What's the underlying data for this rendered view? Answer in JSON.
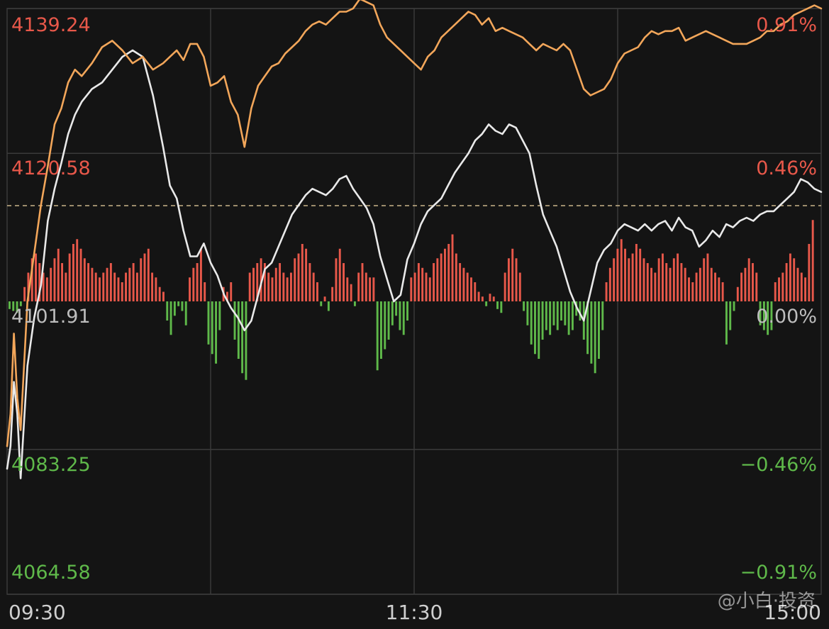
{
  "chart_data": {
    "type": "line",
    "reference_price": "4101.91",
    "y_left_ticks": [
      {
        "label": "4139.24",
        "value": 4139.24,
        "tone": "up"
      },
      {
        "label": "4120.58",
        "value": 4120.58,
        "tone": "up"
      },
      {
        "label": "4101.91",
        "value": 4101.91,
        "tone": "flat"
      },
      {
        "label": "4083.25",
        "value": 4083.25,
        "tone": "down"
      },
      {
        "label": "4064.58",
        "value": 4064.58,
        "tone": "down"
      }
    ],
    "y_right_ticks": [
      {
        "label": "0.91%",
        "value": 0.91,
        "tone": "up"
      },
      {
        "label": "0.46%",
        "value": 0.46,
        "tone": "up"
      },
      {
        "label": "0.00%",
        "value": 0.0,
        "tone": "flat"
      },
      {
        "label": "−0.46%",
        "value": -0.46,
        "tone": "down"
      },
      {
        "label": "−0.91%",
        "value": -0.91,
        "tone": "down"
      }
    ],
    "x_ticks": [
      "09:30",
      "11:30",
      "15:00"
    ],
    "x_range_minutes": [
      0,
      240
    ],
    "ylim_pct": [
      -0.91,
      0.91
    ],
    "grid": true,
    "colors": {
      "up": "#e8584a",
      "down": "#5fb94a",
      "flat": "#bdbdbd",
      "series_white": "#e9e9e9",
      "series_orange": "#f2a65a",
      "grid": "#3a3a3a",
      "ref_line": "#c9b48a"
    },
    "series": [
      {
        "color_key": "series_white",
        "points": [
          [
            0,
            -0.52
          ],
          [
            1,
            -0.45
          ],
          [
            2,
            -0.25
          ],
          [
            3,
            -0.35
          ],
          [
            4,
            -0.55
          ],
          [
            6,
            -0.2
          ],
          [
            8,
            -0.05
          ],
          [
            10,
            0.05
          ],
          [
            12,
            0.25
          ],
          [
            14,
            0.35
          ],
          [
            16,
            0.43
          ],
          [
            18,
            0.52
          ],
          [
            20,
            0.58
          ],
          [
            22,
            0.62
          ],
          [
            25,
            0.66
          ],
          [
            28,
            0.68
          ],
          [
            31,
            0.72
          ],
          [
            34,
            0.76
          ],
          [
            37,
            0.78
          ],
          [
            40,
            0.76
          ],
          [
            43,
            0.64
          ],
          [
            46,
            0.48
          ],
          [
            48,
            0.36
          ],
          [
            50,
            0.32
          ],
          [
            52,
            0.22
          ],
          [
            54,
            0.14
          ],
          [
            56,
            0.14
          ],
          [
            58,
            0.18
          ],
          [
            60,
            0.12
          ],
          [
            62,
            0.08
          ],
          [
            64,
            0.02
          ],
          [
            66,
            -0.02
          ],
          [
            68,
            -0.05
          ],
          [
            70,
            -0.09
          ],
          [
            72,
            -0.06
          ],
          [
            74,
            0.02
          ],
          [
            76,
            0.1
          ],
          [
            78,
            0.12
          ],
          [
            80,
            0.17
          ],
          [
            82,
            0.22
          ],
          [
            84,
            0.27
          ],
          [
            86,
            0.3
          ],
          [
            88,
            0.33
          ],
          [
            90,
            0.35
          ],
          [
            92,
            0.34
          ],
          [
            94,
            0.33
          ],
          [
            96,
            0.35
          ],
          [
            98,
            0.38
          ],
          [
            100,
            0.39
          ],
          [
            102,
            0.35
          ],
          [
            104,
            0.32
          ],
          [
            106,
            0.29
          ],
          [
            108,
            0.24
          ],
          [
            110,
            0.14
          ],
          [
            112,
            0.07
          ],
          [
            114,
            0.0
          ],
          [
            116,
            0.02
          ],
          [
            118,
            0.13
          ],
          [
            120,
            0.18
          ],
          [
            122,
            0.24
          ],
          [
            124,
            0.28
          ],
          [
            126,
            0.3
          ],
          [
            128,
            0.32
          ],
          [
            130,
            0.36
          ],
          [
            132,
            0.4
          ],
          [
            134,
            0.43
          ],
          [
            136,
            0.46
          ],
          [
            138,
            0.5
          ],
          [
            140,
            0.52
          ],
          [
            142,
            0.55
          ],
          [
            144,
            0.53
          ],
          [
            146,
            0.52
          ],
          [
            148,
            0.55
          ],
          [
            150,
            0.54
          ],
          [
            152,
            0.5
          ],
          [
            154,
            0.46
          ],
          [
            156,
            0.36
          ],
          [
            158,
            0.27
          ],
          [
            160,
            0.22
          ],
          [
            162,
            0.17
          ],
          [
            164,
            0.1
          ],
          [
            166,
            0.03
          ],
          [
            168,
            -0.02
          ],
          [
            170,
            -0.06
          ],
          [
            172,
            0.03
          ],
          [
            174,
            0.12
          ],
          [
            176,
            0.16
          ],
          [
            178,
            0.18
          ],
          [
            180,
            0.22
          ],
          [
            182,
            0.24
          ],
          [
            184,
            0.23
          ],
          [
            186,
            0.22
          ],
          [
            188,
            0.24
          ],
          [
            190,
            0.22
          ],
          [
            192,
            0.24
          ],
          [
            194,
            0.25
          ],
          [
            196,
            0.22
          ],
          [
            198,
            0.26
          ],
          [
            200,
            0.23
          ],
          [
            202,
            0.22
          ],
          [
            204,
            0.17
          ],
          [
            206,
            0.19
          ],
          [
            208,
            0.22
          ],
          [
            210,
            0.2
          ],
          [
            212,
            0.24
          ],
          [
            214,
            0.23
          ],
          [
            216,
            0.25
          ],
          [
            218,
            0.26
          ],
          [
            220,
            0.25
          ],
          [
            222,
            0.27
          ],
          [
            224,
            0.28
          ],
          [
            226,
            0.28
          ],
          [
            228,
            0.3
          ],
          [
            230,
            0.32
          ],
          [
            232,
            0.34
          ],
          [
            234,
            0.38
          ],
          [
            236,
            0.37
          ],
          [
            238,
            0.35
          ],
          [
            240,
            0.34
          ]
        ]
      },
      {
        "color_key": "series_orange",
        "points": [
          [
            0,
            -0.45
          ],
          [
            1,
            -0.35
          ],
          [
            2,
            -0.1
          ],
          [
            3,
            -0.3
          ],
          [
            4,
            -0.4
          ],
          [
            6,
            0.0
          ],
          [
            8,
            0.15
          ],
          [
            10,
            0.3
          ],
          [
            12,
            0.42
          ],
          [
            14,
            0.55
          ],
          [
            16,
            0.6
          ],
          [
            18,
            0.68
          ],
          [
            20,
            0.72
          ],
          [
            22,
            0.7
          ],
          [
            25,
            0.74
          ],
          [
            28,
            0.79
          ],
          [
            31,
            0.81
          ],
          [
            34,
            0.78
          ],
          [
            37,
            0.74
          ],
          [
            40,
            0.76
          ],
          [
            43,
            0.72
          ],
          [
            46,
            0.74
          ],
          [
            48,
            0.76
          ],
          [
            50,
            0.78
          ],
          [
            52,
            0.75
          ],
          [
            54,
            0.8
          ],
          [
            56,
            0.8
          ],
          [
            58,
            0.76
          ],
          [
            60,
            0.67
          ],
          [
            62,
            0.68
          ],
          [
            64,
            0.7
          ],
          [
            66,
            0.62
          ],
          [
            68,
            0.58
          ],
          [
            70,
            0.48
          ],
          [
            72,
            0.6
          ],
          [
            74,
            0.67
          ],
          [
            76,
            0.7
          ],
          [
            78,
            0.73
          ],
          [
            80,
            0.74
          ],
          [
            82,
            0.77
          ],
          [
            84,
            0.79
          ],
          [
            86,
            0.81
          ],
          [
            88,
            0.84
          ],
          [
            90,
            0.86
          ],
          [
            92,
            0.87
          ],
          [
            94,
            0.86
          ],
          [
            96,
            0.88
          ],
          [
            98,
            0.9
          ],
          [
            100,
            0.9
          ],
          [
            102,
            0.91
          ],
          [
            104,
            0.94
          ],
          [
            106,
            0.93
          ],
          [
            108,
            0.92
          ],
          [
            110,
            0.86
          ],
          [
            112,
            0.82
          ],
          [
            114,
            0.8
          ],
          [
            116,
            0.78
          ],
          [
            118,
            0.76
          ],
          [
            120,
            0.74
          ],
          [
            122,
            0.72
          ],
          [
            124,
            0.76
          ],
          [
            126,
            0.78
          ],
          [
            128,
            0.82
          ],
          [
            130,
            0.84
          ],
          [
            132,
            0.86
          ],
          [
            134,
            0.88
          ],
          [
            136,
            0.9
          ],
          [
            138,
            0.89
          ],
          [
            140,
            0.86
          ],
          [
            142,
            0.88
          ],
          [
            144,
            0.84
          ],
          [
            146,
            0.85
          ],
          [
            148,
            0.84
          ],
          [
            150,
            0.83
          ],
          [
            152,
            0.82
          ],
          [
            154,
            0.8
          ],
          [
            156,
            0.78
          ],
          [
            158,
            0.8
          ],
          [
            160,
            0.79
          ],
          [
            162,
            0.78
          ],
          [
            164,
            0.8
          ],
          [
            166,
            0.78
          ],
          [
            168,
            0.72
          ],
          [
            170,
            0.66
          ],
          [
            172,
            0.64
          ],
          [
            174,
            0.65
          ],
          [
            176,
            0.66
          ],
          [
            178,
            0.69
          ],
          [
            180,
            0.74
          ],
          [
            182,
            0.77
          ],
          [
            184,
            0.78
          ],
          [
            186,
            0.79
          ],
          [
            188,
            0.82
          ],
          [
            190,
            0.84
          ],
          [
            192,
            0.83
          ],
          [
            194,
            0.84
          ],
          [
            196,
            0.84
          ],
          [
            198,
            0.85
          ],
          [
            200,
            0.81
          ],
          [
            202,
            0.82
          ],
          [
            204,
            0.83
          ],
          [
            206,
            0.84
          ],
          [
            208,
            0.83
          ],
          [
            210,
            0.82
          ],
          [
            212,
            0.81
          ],
          [
            214,
            0.8
          ],
          [
            216,
            0.8
          ],
          [
            218,
            0.8
          ],
          [
            220,
            0.81
          ],
          [
            222,
            0.82
          ],
          [
            224,
            0.84
          ],
          [
            226,
            0.84
          ],
          [
            228,
            0.86
          ],
          [
            230,
            0.87
          ],
          [
            232,
            0.89
          ],
          [
            234,
            0.9
          ],
          [
            236,
            0.91
          ],
          [
            238,
            0.92
          ],
          [
            240,
            0.91
          ]
        ]
      }
    ],
    "volume_bars": {
      "ylim": [
        -1.0,
        1.0
      ],
      "values": [
        -0.08,
        -0.1,
        -0.12,
        -0.05,
        0.15,
        0.3,
        0.45,
        0.5,
        0.4,
        0.3,
        0.25,
        0.35,
        0.45,
        0.55,
        0.4,
        0.3,
        0.5,
        0.6,
        0.65,
        0.55,
        0.45,
        0.4,
        0.35,
        0.3,
        0.25,
        0.3,
        0.35,
        0.4,
        0.3,
        0.25,
        0.2,
        0.3,
        0.35,
        0.4,
        0.3,
        0.45,
        0.5,
        0.55,
        0.3,
        0.25,
        0.15,
        0.1,
        -0.2,
        -0.35,
        -0.15,
        -0.05,
        -0.1,
        -0.25,
        0.25,
        0.35,
        0.4,
        0.55,
        0.2,
        -0.45,
        -0.55,
        -0.65,
        -0.3,
        0.15,
        0.1,
        0.2,
        -0.4,
        -0.6,
        -0.75,
        -0.82,
        0.3,
        0.35,
        0.4,
        0.45,
        0.4,
        0.3,
        0.25,
        0.35,
        0.4,
        0.3,
        0.25,
        0.3,
        0.45,
        0.5,
        0.6,
        0.55,
        0.4,
        0.3,
        0.2,
        -0.05,
        0.05,
        -0.1,
        0.15,
        0.45,
        0.55,
        0.4,
        0.25,
        0.18,
        -0.05,
        0.3,
        0.4,
        0.3,
        0.25,
        0.25,
        -0.72,
        -0.6,
        -0.5,
        -0.4,
        -0.25,
        -0.15,
        -0.3,
        -0.35,
        -0.2,
        0.25,
        0.3,
        0.4,
        0.35,
        0.3,
        0.25,
        0.4,
        0.45,
        0.5,
        0.55,
        0.6,
        0.7,
        0.5,
        0.4,
        0.35,
        0.3,
        0.25,
        0.2,
        0.1,
        0.05,
        -0.05,
        0.08,
        0.05,
        -0.08,
        -0.12,
        0.3,
        0.45,
        0.55,
        0.45,
        0.3,
        -0.1,
        -0.25,
        -0.45,
        -0.55,
        -0.6,
        -0.4,
        -0.3,
        -0.35,
        -0.25,
        -0.3,
        -0.2,
        -0.25,
        -0.35,
        -0.3,
        -0.15,
        -0.2,
        -0.4,
        -0.55,
        -0.65,
        -0.75,
        -0.6,
        -0.3,
        0.2,
        0.35,
        0.45,
        0.55,
        0.65,
        0.55,
        0.45,
        0.5,
        0.6,
        0.55,
        0.45,
        0.4,
        0.35,
        0.3,
        0.45,
        0.5,
        0.4,
        0.35,
        0.45,
        0.5,
        0.4,
        0.35,
        0.25,
        0.2,
        0.3,
        0.35,
        0.45,
        0.5,
        0.35,
        0.3,
        0.25,
        0.2,
        -0.45,
        -0.3,
        -0.1,
        0.15,
        0.3,
        0.35,
        0.45,
        0.4,
        0.3,
        -0.25,
        -0.3,
        -0.35,
        -0.3,
        0.2,
        0.25,
        0.3,
        0.4,
        0.5,
        0.45,
        0.35,
        0.3,
        0.25,
        0.6,
        0.85
      ]
    }
  },
  "watermark": "@小白·投资"
}
